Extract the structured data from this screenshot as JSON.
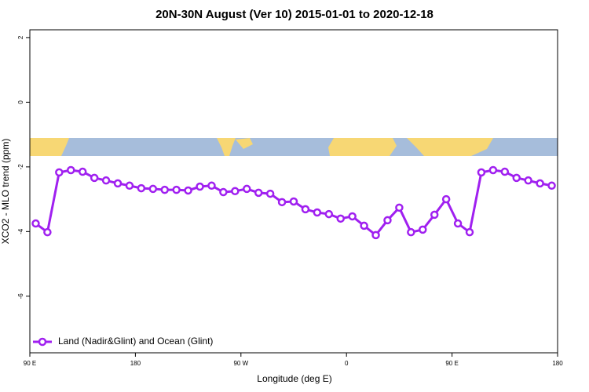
{
  "chart_data": {
    "type": "line",
    "title": "20N-30N August (Ver 10)   2015-01-01 to 2020-12-18",
    "xlabel": "Longitude (deg E)",
    "ylabel": "XCO2 - MLO trend (ppm)",
    "xlim": [
      90,
      540
    ],
    "xticks": [
      {
        "value": 90,
        "label": "90 E"
      },
      {
        "value": 180,
        "label": "180"
      },
      {
        "value": 270,
        "label": "90 W"
      },
      {
        "value": 360,
        "label": "0"
      },
      {
        "value": 450,
        "label": "90 E"
      },
      {
        "value": 540,
        "label": "180"
      }
    ],
    "ylim": [
      -7.75,
      2.24
    ],
    "yticks": [
      2,
      0,
      -2,
      -4,
      -6
    ],
    "legend": "bottom-left",
    "grid": false,
    "series": [
      {
        "name": "Land (Nadir&Glint) and Ocean (Glint)",
        "color": "#a020f0",
        "x": [
          95,
          105,
          115,
          125,
          135,
          145,
          155,
          165,
          175,
          185,
          195,
          205,
          215,
          225,
          235,
          245,
          255,
          265,
          275,
          285,
          295,
          305,
          315,
          325,
          335,
          345,
          355,
          365,
          375,
          385,
          395,
          405,
          415,
          425,
          435,
          445,
          455,
          465,
          475,
          485,
          495,
          505,
          515,
          525,
          535
        ],
        "values": [
          -3.75,
          -4.02,
          -2.17,
          -2.1,
          -2.15,
          -2.34,
          -2.42,
          -2.51,
          -2.58,
          -2.66,
          -2.68,
          -2.71,
          -2.71,
          -2.73,
          -2.61,
          -2.58,
          -2.78,
          -2.75,
          -2.68,
          -2.8,
          -2.83,
          -3.09,
          -3.07,
          -3.31,
          -3.41,
          -3.46,
          -3.6,
          -3.53,
          -3.82,
          -4.11,
          -3.65,
          -3.26,
          -4.02,
          -3.94,
          -3.48,
          -3.0,
          -3.75,
          -4.02,
          -2.17,
          -2.1,
          -2.15,
          -2.34,
          -2.42,
          -2.51,
          -2.58
        ]
      }
    ]
  }
}
